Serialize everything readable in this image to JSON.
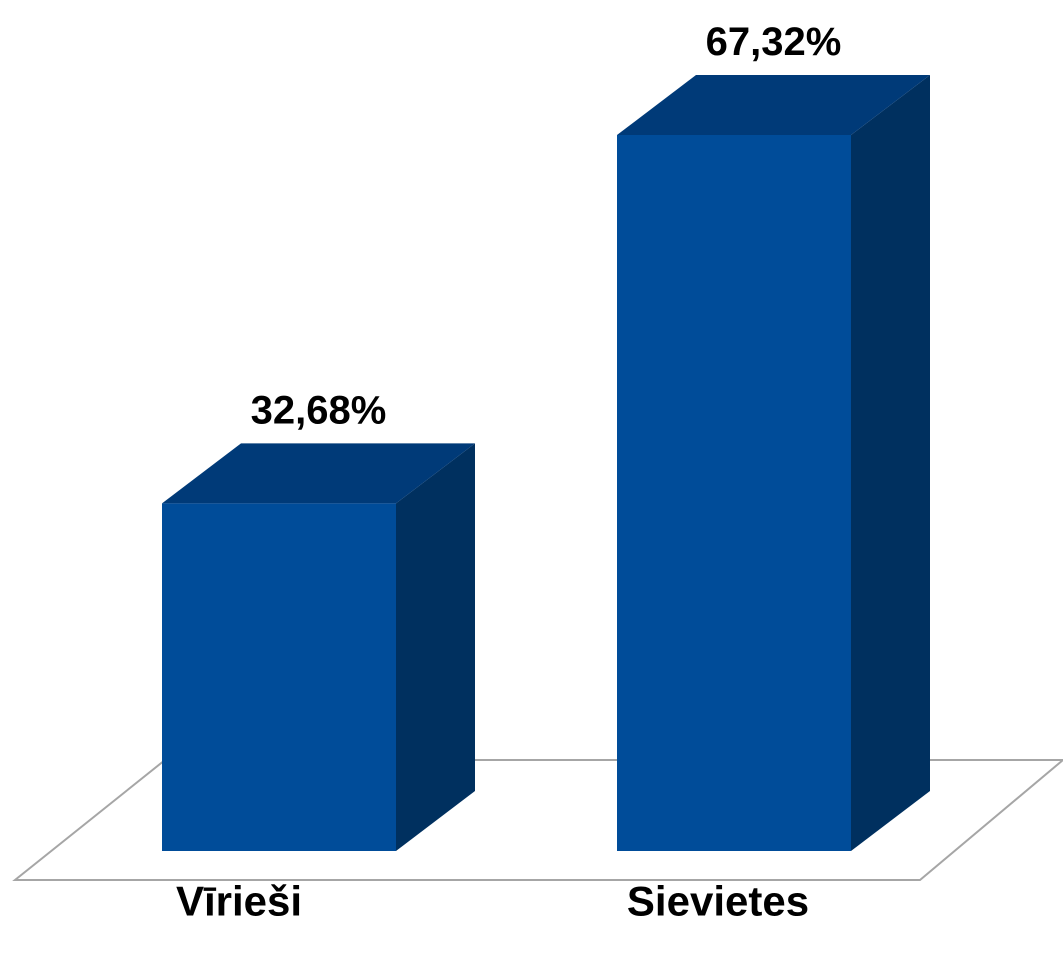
{
  "chart_data": {
    "type": "bar",
    "style": "3d-column",
    "categories": [
      "Vīrieši",
      "Sievietes"
    ],
    "values": [
      32.68,
      67.32
    ],
    "value_labels": [
      "32,68%",
      "67,32%"
    ],
    "ylim": [
      0,
      67.32
    ],
    "grid": false,
    "legend": "none",
    "colors": {
      "bar_front": "#004C99",
      "bar_top": "#003A78",
      "bar_side": "#00305F",
      "floor_line": "#A6A6A6",
      "text": "#000000"
    }
  }
}
